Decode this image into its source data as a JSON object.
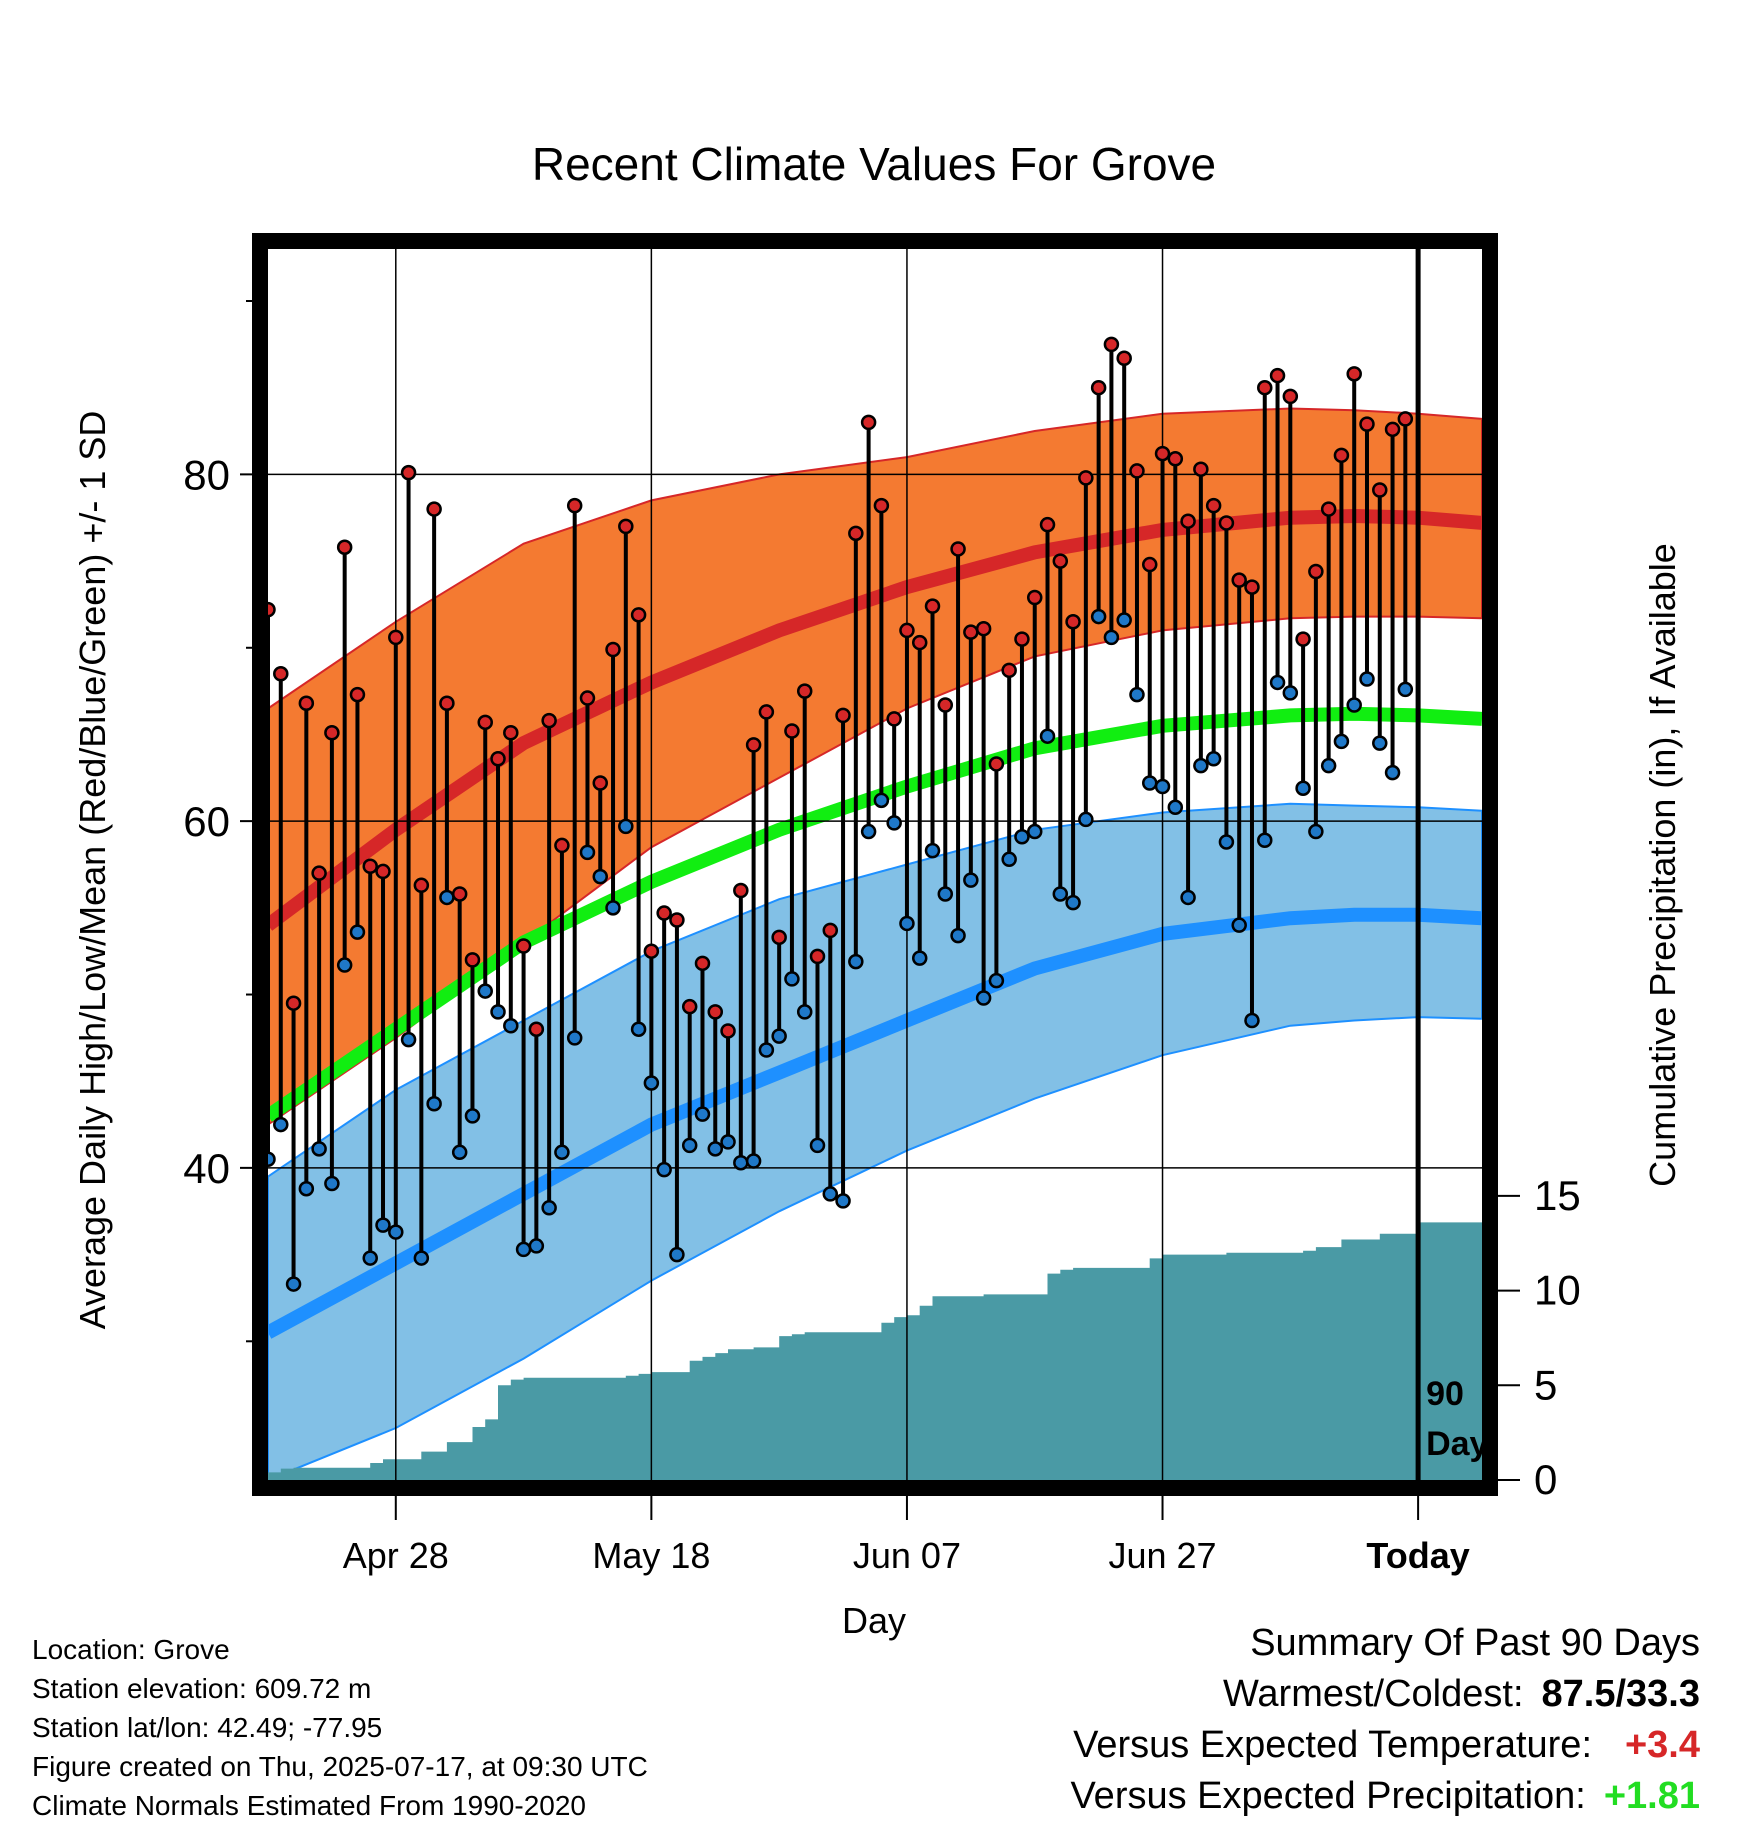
{
  "chart_data": {
    "type": "line",
    "title": "Recent Climate Values For Grove",
    "xlabel": "Day",
    "ylabel": "Average Daily High/Low/Mean (Red/Blue/Green) +/- 1 SD",
    "y2label": "Cumulative Precipitation (in), If Available",
    "ylim": [
      22,
      93
    ],
    "y2lim": [
      0,
      65
    ],
    "yticks": [
      80,
      60,
      40
    ],
    "y2ticks": [
      15,
      10,
      5,
      0
    ],
    "x_tick_labels": [
      "Apr 28",
      "May 18",
      "Jun 07",
      "Jun 27",
      "Today"
    ],
    "x_tick_days": [
      10,
      30,
      50,
      70,
      90
    ],
    "xlim": [
      0,
      95
    ],
    "today_marker": {
      "day": 90,
      "label_line1": "90",
      "label_line2": "Days"
    },
    "grid": true,
    "colors": {
      "high_band": "#f47a31",
      "high_line": "#d62728",
      "low_band": "#82c0e6",
      "low_line": "#1e90ff",
      "mean_line": "#11ee11",
      "precip": "#4a9aa5",
      "high_marker": "#d62728",
      "low_marker": "#1f78c8"
    },
    "normals": {
      "days": [
        0,
        10,
        20,
        30,
        40,
        50,
        60,
        70,
        80,
        85,
        90,
        95
      ],
      "high_mean": [
        54,
        59.5,
        64.5,
        68,
        71,
        73.5,
        75.5,
        76.8,
        77.5,
        77.6,
        77.5,
        77.2
      ],
      "high_upper": [
        66.5,
        71.5,
        76,
        78.5,
        80,
        81,
        82.5,
        83.5,
        83.8,
        83.7,
        83.5,
        83.2
      ],
      "high_lower": [
        42.5,
        47.5,
        53,
        58.5,
        62.5,
        66.5,
        69.5,
        71,
        71.7,
        71.8,
        71.8,
        71.7
      ],
      "mean_line": [
        43,
        48,
        53,
        56.5,
        59.5,
        62,
        64.2,
        65.5,
        66.1,
        66.2,
        66.1,
        65.9
      ],
      "low_mean": [
        30.5,
        34.5,
        38.5,
        42.5,
        45.5,
        48.5,
        51.5,
        53.5,
        54.4,
        54.6,
        54.6,
        54.4
      ],
      "low_upper": [
        39.5,
        44.5,
        48.5,
        52.5,
        55.5,
        57.5,
        59.5,
        60.5,
        61,
        60.9,
        60.8,
        60.6
      ],
      "low_lower": [
        22,
        25,
        29,
        33.5,
        37.5,
        41,
        44,
        46.5,
        48.2,
        48.5,
        48.7,
        48.6
      ]
    },
    "highs": [
      72.2,
      68.5,
      49.5,
      66.8,
      57.0,
      65.1,
      75.8,
      67.3,
      57.4,
      57.1,
      70.6,
      80.1,
      56.3,
      78.0,
      66.8,
      55.8,
      52.0,
      65.7,
      63.6,
      65.1,
      52.8,
      48.0,
      65.8,
      58.6,
      78.2,
      67.1,
      62.2,
      69.9,
      77.0,
      71.9,
      52.5,
      54.7,
      54.3,
      49.3,
      51.8,
      49.0,
      47.9,
      56.0,
      64.4,
      66.3,
      53.3,
      65.2,
      67.5,
      52.2,
      53.7,
      66.1,
      76.6,
      83.0,
      78.2,
      65.9,
      71.0,
      70.3,
      72.4,
      66.7,
      75.7,
      70.9,
      71.1,
      63.3,
      68.7,
      70.5,
      72.9,
      77.1,
      75.0,
      71.5,
      79.8,
      85.0,
      87.5,
      86.7,
      80.2,
      74.8,
      81.2,
      80.9,
      77.3,
      80.3,
      78.2,
      77.2,
      73.9,
      73.5,
      85.0,
      85.7,
      84.5,
      70.5,
      74.4,
      78.0,
      81.1,
      85.8,
      82.9,
      79.1,
      82.6,
      83.2
    ],
    "lows": [
      40.5,
      42.5,
      33.3,
      38.8,
      41.1,
      39.1,
      51.7,
      53.6,
      34.8,
      36.7,
      36.3,
      47.4,
      34.8,
      43.7,
      55.6,
      40.9,
      43.0,
      50.2,
      49.0,
      48.2,
      35.3,
      35.5,
      37.7,
      40.9,
      47.5,
      58.2,
      56.8,
      55.0,
      59.7,
      48.0,
      44.9,
      39.9,
      35.0,
      41.3,
      43.1,
      41.1,
      41.5,
      40.3,
      40.4,
      46.8,
      47.6,
      50.9,
      49.0,
      41.3,
      38.5,
      38.1,
      51.9,
      59.4,
      61.2,
      59.9,
      54.1,
      52.1,
      58.3,
      55.8,
      53.4,
      56.6,
      49.8,
      50.8,
      57.8,
      59.1,
      59.4,
      64.9,
      55.8,
      55.3,
      60.1,
      71.8,
      70.6,
      71.6,
      67.3,
      62.2,
      62.0,
      60.8,
      55.6,
      63.2,
      63.6,
      58.8,
      54.0,
      48.5,
      58.9,
      68.0,
      67.4,
      61.9,
      59.4,
      63.2,
      64.6,
      66.7,
      68.2,
      64.5,
      62.8,
      67.6
    ],
    "precip_cumulative": {
      "days": [
        0,
        1,
        2,
        3,
        4,
        5,
        6,
        7,
        8,
        9,
        10,
        11,
        12,
        13,
        14,
        15,
        16,
        17,
        18,
        19,
        20,
        21,
        22,
        23,
        24,
        25,
        26,
        27,
        28,
        29,
        30,
        31,
        32,
        33,
        34,
        35,
        36,
        37,
        38,
        39,
        40,
        41,
        42,
        43,
        44,
        45,
        46,
        47,
        48,
        49,
        50,
        51,
        52,
        53,
        54,
        55,
        56,
        57,
        58,
        59,
        60,
        61,
        62,
        63,
        64,
        65,
        66,
        67,
        68,
        69,
        70,
        71,
        72,
        73,
        74,
        75,
        76,
        77,
        78,
        79,
        80,
        81,
        82,
        83,
        84,
        85,
        86,
        87,
        88,
        89,
        90,
        95
      ],
      "values": [
        0.4,
        0.6,
        0.65,
        0.65,
        0.65,
        0.65,
        0.65,
        0.65,
        0.9,
        1.1,
        1.1,
        1.1,
        1.5,
        1.5,
        2.0,
        2.0,
        2.8,
        3.2,
        5.0,
        5.3,
        5.4,
        5.4,
        5.4,
        5.4,
        5.4,
        5.4,
        5.4,
        5.4,
        5.5,
        5.6,
        5.7,
        5.7,
        5.7,
        6.3,
        6.5,
        6.7,
        6.9,
        6.9,
        7.0,
        7.0,
        7.6,
        7.7,
        7.8,
        7.8,
        7.8,
        7.8,
        7.8,
        7.8,
        8.3,
        8.6,
        8.7,
        9.2,
        9.7,
        9.7,
        9.7,
        9.7,
        9.8,
        9.8,
        9.8,
        9.8,
        9.8,
        10.9,
        11.1,
        11.2,
        11.2,
        11.2,
        11.2,
        11.2,
        11.2,
        11.7,
        11.9,
        11.9,
        11.9,
        11.9,
        11.9,
        12.0,
        12.0,
        12.0,
        12.0,
        12.0,
        12.0,
        12.1,
        12.3,
        12.3,
        12.7,
        12.7,
        12.7,
        13.0,
        13.0,
        13.0,
        13.6,
        13.6
      ]
    }
  },
  "meta": {
    "location": "Location: Grove",
    "elevation": "Station elevation: 609.72 m",
    "latlon": "Station lat/lon: 42.49; -77.95",
    "created": "Figure created on Thu, 2025-07-17, at 09:30 UTC",
    "normals": "Climate Normals Estimated From 1990-2020"
  },
  "summary": {
    "title": "Summary Of Past 90 Days",
    "warm_label": "Warmest/Coldest:",
    "warm_value": "87.5/33.3",
    "temp_label": "Versus Expected Temperature:",
    "temp_value": "+3.4",
    "prcp_label": "Versus Expected Precipitation:",
    "prcp_value": "+1.81"
  }
}
